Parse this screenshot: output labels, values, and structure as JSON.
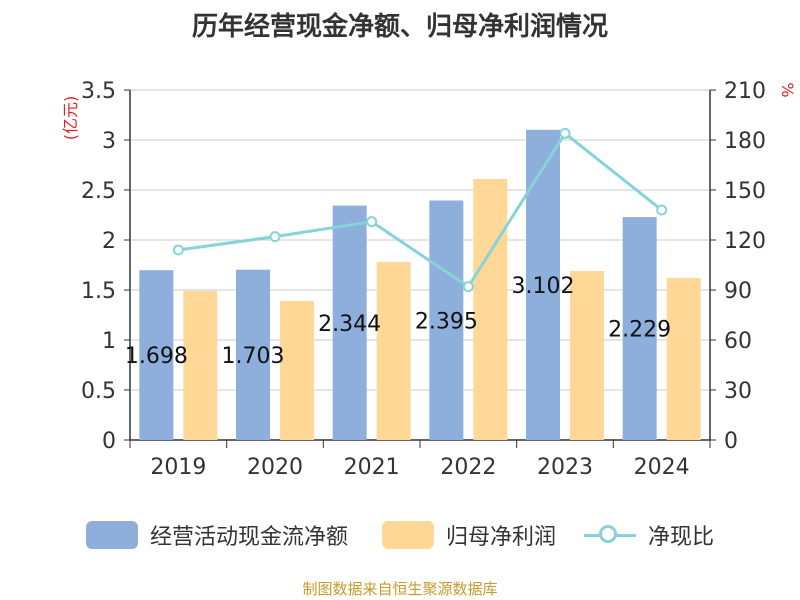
{
  "chart_data": {
    "type": "bar",
    "title": "历年经营现金净额、归母净利润情况",
    "categories": [
      "2019",
      "2020",
      "2021",
      "2022",
      "2023",
      "2024"
    ],
    "y_left": {
      "label": "(亿元)",
      "min": 0,
      "max": 3.5,
      "ticks": [
        "0",
        "0.5",
        "1",
        "1.5",
        "2",
        "2.5",
        "3",
        "3.5"
      ]
    },
    "y_right": {
      "label": "%",
      "min": 0,
      "max": 210,
      "ticks": [
        "0",
        "30",
        "60",
        "90",
        "120",
        "150",
        "180",
        "210"
      ]
    },
    "series": [
      {
        "name": "经营活动现金流净额",
        "kind": "bar",
        "axis": "left",
        "color": "#8eafdc",
        "values": [
          1.698,
          1.703,
          2.344,
          2.395,
          3.102,
          2.229
        ],
        "labels": [
          "1.698",
          "1.703",
          "2.344",
          "2.395",
          "3.102",
          "2.229"
        ]
      },
      {
        "name": "归母净利润",
        "kind": "bar",
        "axis": "left",
        "color": "#ffd898",
        "values": [
          1.49,
          1.39,
          1.78,
          2.61,
          1.69,
          1.62
        ]
      },
      {
        "name": "净现比",
        "kind": "line",
        "axis": "right",
        "color": "#86d3d8",
        "values": [
          114,
          122,
          131,
          92,
          184,
          138
        ]
      }
    ],
    "grid": true,
    "legend": "bottom"
  },
  "source": "制图数据来自恒生聚源数据库"
}
